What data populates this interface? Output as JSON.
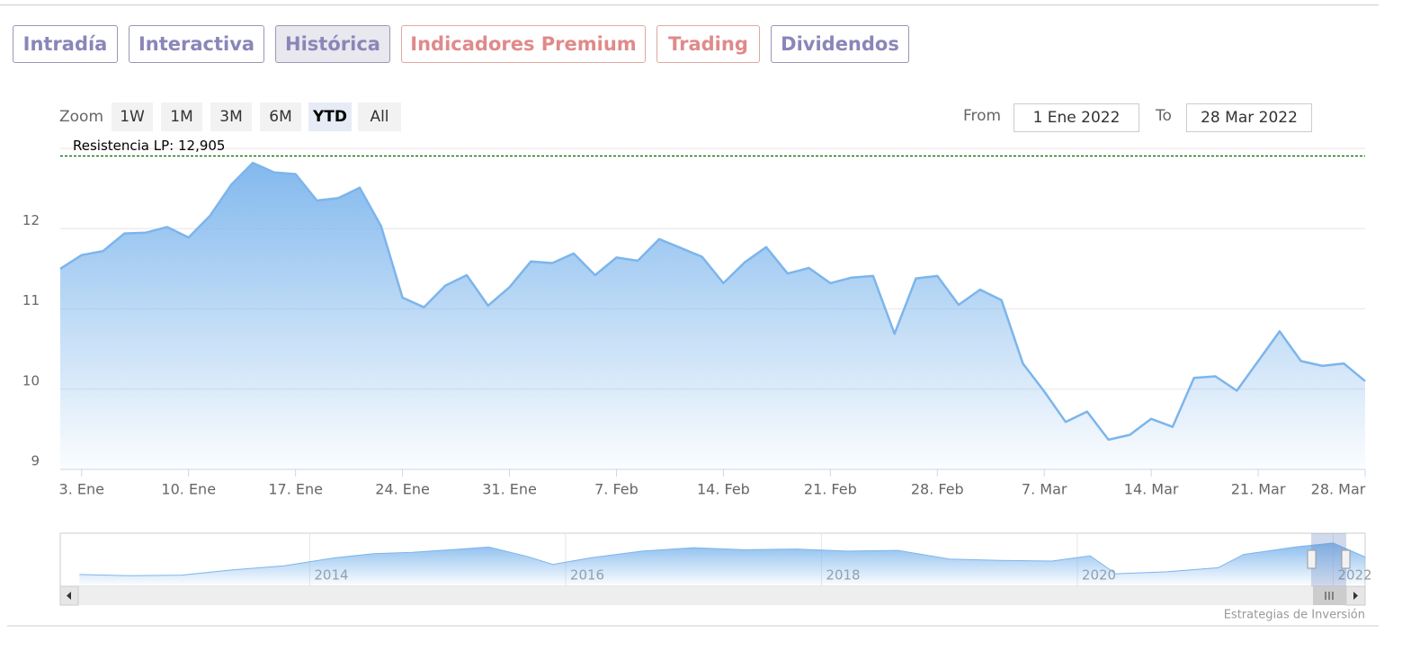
{
  "tabs": [
    "Intradía",
    "Interactiva",
    "Histórica",
    "Indicadores Premium",
    "Trading",
    "Dividendos"
  ],
  "zoom": {
    "label": "Zoom",
    "buttons": [
      "1W",
      "1M",
      "3M",
      "6M",
      "YTD",
      "All"
    ]
  },
  "range": {
    "from_label": "From",
    "from": "1 Ene 2022",
    "to_label": "To",
    "to": "28 Mar 2022"
  },
  "credit": "Estrategias de Inversión",
  "chart_data": {
    "type": "area",
    "color": "#7cb5ec",
    "categories": [
      null,
      "3. Ene",
      null,
      null,
      null,
      null,
      "10. Ene",
      null,
      null,
      null,
      null,
      "17. Ene",
      null,
      null,
      null,
      null,
      "24. Ene",
      null,
      null,
      null,
      null,
      "31. Ene",
      null,
      null,
      null,
      null,
      "7. Feb",
      null,
      null,
      null,
      null,
      "14. Feb",
      null,
      null,
      null,
      null,
      "21. Feb",
      null,
      null,
      null,
      null,
      "28. Feb",
      null,
      null,
      null,
      null,
      "7. Mar",
      null,
      null,
      null,
      null,
      "14. Mar",
      null,
      null,
      null,
      null,
      "21. Mar",
      null,
      null,
      null,
      null,
      "28. Mar"
    ],
    "values": [
      11.5,
      11.67,
      11.72,
      11.94,
      11.95,
      12.02,
      11.89,
      12.16,
      12.55,
      12.82,
      12.7,
      12.68,
      12.35,
      12.38,
      12.51,
      12.03,
      11.14,
      11.02,
      11.29,
      11.42,
      11.04,
      11.27,
      11.59,
      11.57,
      11.69,
      11.42,
      11.64,
      11.6,
      11.87,
      11.76,
      11.65,
      11.32,
      11.58,
      11.77,
      11.44,
      11.51,
      11.32,
      11.39,
      11.41,
      10.69,
      11.38,
      11.41,
      11.05,
      11.24,
      11.11,
      10.32,
      9.97,
      9.59,
      9.72,
      9.37,
      9.43,
      9.63,
      9.53,
      10.14,
      10.16,
      9.98,
      10.35,
      10.72,
      10.35,
      10.29,
      10.32,
      10.1
    ],
    "ylim": [
      9,
      13
    ],
    "yticks": [
      9,
      10,
      11,
      12
    ],
    "grid": true,
    "resistance": {
      "label": "Resistencia LP: 12,905",
      "value": 12.905,
      "color": "#006400"
    },
    "navigator": {
      "x": [
        2012.2,
        2012.6,
        2013.0,
        2013.4,
        2013.8,
        2014.2,
        2014.5,
        2014.8,
        2015.1,
        2015.4,
        2015.7,
        2015.9,
        2016.2,
        2016.6,
        2017.0,
        2017.4,
        2017.8,
        2018.2,
        2018.6,
        2019.0,
        2019.4,
        2019.8,
        2020.1,
        2020.3,
        2020.7,
        2021.1,
        2021.3,
        2021.7,
        2022.0,
        2022.25
      ],
      "values": [
        7.5,
        7.3,
        7.4,
        8.2,
        8.8,
        10.0,
        10.6,
        10.8,
        11.2,
        11.6,
        10.2,
        9.0,
        10.0,
        11.0,
        11.5,
        11.2,
        11.3,
        11.0,
        11.1,
        9.8,
        9.6,
        9.5,
        10.3,
        7.6,
        7.9,
        8.5,
        10.5,
        11.6,
        12.2,
        10.1
      ],
      "xlim": [
        2012.05,
        2022.25
      ],
      "ylim": [
        6,
        13
      ],
      "xticks": [
        2014,
        2016,
        2018,
        2020,
        2022
      ]
    }
  }
}
